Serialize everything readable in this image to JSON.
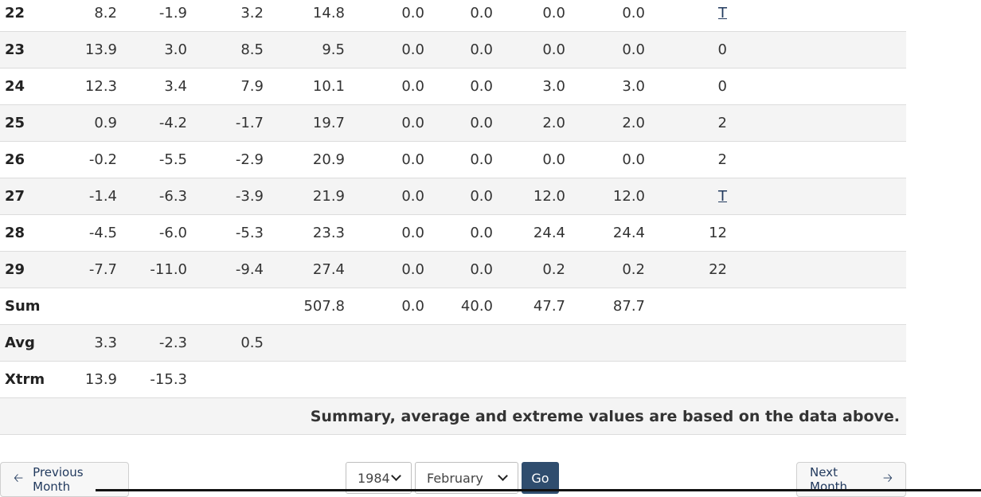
{
  "rows": [
    {
      "day": "22",
      "c": [
        "8.2",
        "-1.9",
        "3.2",
        "14.8",
        "0.0",
        "0.0",
        "0.0",
        "0.0",
        "T"
      ],
      "trace": true
    },
    {
      "day": "23",
      "c": [
        "13.9",
        "3.0",
        "8.5",
        "9.5",
        "0.0",
        "0.0",
        "0.0",
        "0.0",
        "0"
      ],
      "trace": false
    },
    {
      "day": "24",
      "c": [
        "12.3",
        "3.4",
        "7.9",
        "10.1",
        "0.0",
        "0.0",
        "3.0",
        "3.0",
        "0"
      ],
      "trace": false
    },
    {
      "day": "25",
      "c": [
        "0.9",
        "-4.2",
        "-1.7",
        "19.7",
        "0.0",
        "0.0",
        "2.0",
        "2.0",
        "2"
      ],
      "trace": false
    },
    {
      "day": "26",
      "c": [
        "-0.2",
        "-5.5",
        "-2.9",
        "20.9",
        "0.0",
        "0.0",
        "0.0",
        "0.0",
        "2"
      ],
      "trace": false
    },
    {
      "day": "27",
      "c": [
        "-1.4",
        "-6.3",
        "-3.9",
        "21.9",
        "0.0",
        "0.0",
        "12.0",
        "12.0",
        "T"
      ],
      "trace": true
    },
    {
      "day": "28",
      "c": [
        "-4.5",
        "-6.0",
        "-5.3",
        "23.3",
        "0.0",
        "0.0",
        "24.4",
        "24.4",
        "12"
      ],
      "trace": false
    },
    {
      "day": "29",
      "c": [
        "-7.7",
        "-11.0",
        "-9.4",
        "27.4",
        "0.0",
        "0.0",
        "0.2",
        "0.2",
        "22"
      ],
      "trace": false
    },
    {
      "day": "Sum",
      "c": [
        "",
        "",
        "",
        "507.8",
        "0.0",
        "40.0",
        "47.7",
        "87.7",
        ""
      ],
      "trace": false
    },
    {
      "day": "Avg",
      "c": [
        "3.3",
        "-2.3",
        "0.5",
        "",
        "",
        "",
        "",
        "",
        ""
      ],
      "trace": false
    },
    {
      "day": "Xtrm",
      "c": [
        "13.9",
        "-15.3",
        "",
        "",
        "",
        "",
        "",
        "",
        ""
      ],
      "trace": false
    }
  ],
  "summary_note": "Summary, average and extreme values are based on the data above.",
  "nav": {
    "previous_label": "Previous Month",
    "next_label": "Next Month",
    "year_value": "1984",
    "month_value": "February",
    "go_label": "Go"
  }
}
